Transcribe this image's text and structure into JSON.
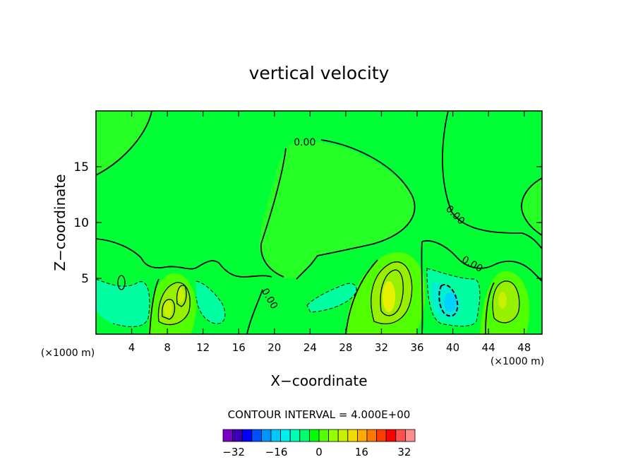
{
  "chart_data": {
    "type": "heatmap",
    "title": "vertical velocity",
    "xlabel": "X−coordinate",
    "ylabel": "Z−coordinate",
    "x_unit_left": "(×1000 m)",
    "x_unit_right": "(×1000 m)",
    "xlim": [
      0,
      50
    ],
    "ylim": [
      0,
      20
    ],
    "x_ticks": [
      4,
      8,
      12,
      16,
      20,
      24,
      28,
      32,
      36,
      40,
      44,
      48
    ],
    "y_ticks": [
      5,
      10,
      15
    ],
    "contour_interval_text": "CONTOUR INTERVAL = 4.000E+00",
    "contour_labels": [
      {
        "text": "0.00",
        "x": 23.4,
        "z": 17.2
      },
      {
        "text": "0.00",
        "x": 40.3,
        "z": 10.7
      },
      {
        "text": "0.00",
        "x": 42.2,
        "z": 6.3
      },
      {
        "text": "0.00",
        "x": 19.5,
        "z": 3.2
      }
    ],
    "colorbar": {
      "min": -36,
      "max": 36,
      "step": 4,
      "tick_labels": [
        "−32",
        "−16",
        "0",
        "16",
        "32"
      ],
      "tick_values": [
        -32,
        -16,
        0,
        16,
        32
      ],
      "colors": [
        "#7a00c8",
        "#3c00b4",
        "#0000ff",
        "#0050ff",
        "#0096ff",
        "#00c8ff",
        "#00f0f0",
        "#00ffb4",
        "#00ff6e",
        "#00ff00",
        "#50ff00",
        "#96ff00",
        "#c8f000",
        "#f0dc00",
        "#ffaa00",
        "#ff7800",
        "#ff3c00",
        "#ff0000",
        "#ff5050",
        "#ff8c8c"
      ]
    },
    "field_colors": {
      "background": "#00ff34",
      "upper_left_region": "#25ff25",
      "weak_up": "#50ff00",
      "mid_up": "#96f000",
      "strong_up": "#e6f000",
      "weak_down": "#00ffa0",
      "mid_down": "#00f0d2",
      "strong_down": "#00d2ff"
    }
  }
}
